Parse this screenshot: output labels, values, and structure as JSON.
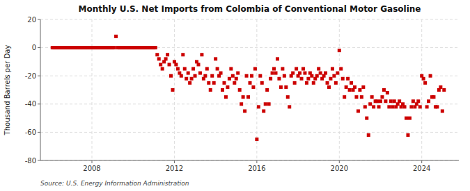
{
  "chart_data": {
    "type": "scatter",
    "title": "Monthly U.S. Net Imports from Colombia of Conventional Motor Gasoline",
    "ylabel": "Thousand Barrels per Day",
    "source": "Source: U.S. Energy Information Administration",
    "color": "#cc0000",
    "marker": "square",
    "grid": true,
    "xlim": [
      2005.5,
      2025.8
    ],
    "xticks": [
      2008,
      2012,
      2016,
      2020,
      2024
    ],
    "ylim": [
      -80,
      20
    ],
    "yticks": [
      -80,
      -60,
      -40,
      -20,
      0,
      20
    ],
    "x": [
      2006.083,
      2006.167,
      2006.25,
      2006.333,
      2006.417,
      2006.5,
      2006.583,
      2006.667,
      2006.75,
      2006.833,
      2006.917,
      2007.0,
      2007.083,
      2007.167,
      2007.25,
      2007.333,
      2007.417,
      2007.5,
      2007.583,
      2007.667,
      2007.75,
      2007.833,
      2007.917,
      2008.0,
      2008.083,
      2008.167,
      2008.25,
      2008.333,
      2008.417,
      2008.5,
      2008.583,
      2008.667,
      2008.75,
      2008.833,
      2008.917,
      2009.0,
      2009.083,
      2009.167,
      2009.25,
      2009.333,
      2009.417,
      2009.5,
      2009.583,
      2009.667,
      2009.75,
      2009.833,
      2009.917,
      2010.0,
      2010.083,
      2010.167,
      2010.25,
      2010.333,
      2010.417,
      2010.5,
      2010.583,
      2010.667,
      2010.75,
      2010.833,
      2010.917,
      2011.0,
      2011.083,
      2011.167,
      2011.25,
      2011.333,
      2011.417,
      2011.5,
      2011.583,
      2011.667,
      2011.75,
      2011.833,
      2011.917,
      2012.0,
      2012.083,
      2012.167,
      2012.25,
      2012.333,
      2012.417,
      2012.5,
      2012.583,
      2012.667,
      2012.75,
      2012.833,
      2012.917,
      2013.0,
      2013.083,
      2013.167,
      2013.25,
      2013.333,
      2013.417,
      2013.5,
      2013.583,
      2013.667,
      2013.75,
      2013.833,
      2013.917,
      2014.0,
      2014.083,
      2014.167,
      2014.25,
      2014.333,
      2014.417,
      2014.5,
      2014.583,
      2014.667,
      2014.75,
      2014.833,
      2014.917,
      2015.0,
      2015.083,
      2015.167,
      2015.25,
      2015.333,
      2015.417,
      2015.5,
      2015.583,
      2015.667,
      2015.75,
      2015.833,
      2015.917,
      2016.0,
      2016.083,
      2016.167,
      2016.25,
      2016.333,
      2016.417,
      2016.5,
      2016.583,
      2016.667,
      2016.75,
      2016.833,
      2016.917,
      2017.0,
      2017.083,
      2017.167,
      2017.25,
      2017.333,
      2017.417,
      2017.5,
      2017.583,
      2017.667,
      2017.75,
      2017.833,
      2017.917,
      2018.0,
      2018.083,
      2018.167,
      2018.25,
      2018.333,
      2018.417,
      2018.5,
      2018.583,
      2018.667,
      2018.75,
      2018.833,
      2018.917,
      2019.0,
      2019.083,
      2019.167,
      2019.25,
      2019.333,
      2019.417,
      2019.5,
      2019.583,
      2019.667,
      2019.75,
      2019.833,
      2019.917,
      2020.0,
      2020.083,
      2020.167,
      2020.25,
      2020.333,
      2020.417,
      2020.5,
      2020.583,
      2020.667,
      2020.75,
      2020.833,
      2020.917,
      2021.0,
      2021.083,
      2021.167,
      2021.25,
      2021.333,
      2021.417,
      2021.5,
      2021.583,
      2021.667,
      2021.75,
      2021.833,
      2021.917,
      2022.0,
      2022.083,
      2022.167,
      2022.25,
      2022.333,
      2022.417,
      2022.5,
      2022.583,
      2022.667,
      2022.75,
      2022.833,
      2022.917,
      2023.0,
      2023.083,
      2023.167,
      2023.25,
      2023.333,
      2023.417,
      2023.5,
      2023.583,
      2023.667,
      2023.75,
      2023.833,
      2023.917,
      2024.0,
      2024.083,
      2024.167,
      2024.25,
      2024.333,
      2024.417,
      2024.5,
      2024.583,
      2024.667,
      2024.75,
      2024.833,
      2024.917,
      2025.0,
      2025.083
    ],
    "values": [
      0,
      0,
      0,
      0,
      0,
      0,
      0,
      0,
      0,
      0,
      0,
      0,
      0,
      0,
      0,
      0,
      0,
      0,
      0,
      0,
      0,
      0,
      0,
      0,
      0,
      0,
      0,
      0,
      0,
      0,
      0,
      0,
      0,
      0,
      0,
      0,
      0,
      8,
      0,
      0,
      0,
      0,
      0,
      0,
      0,
      0,
      0,
      0,
      0,
      0,
      0,
      0,
      0,
      0,
      0,
      0,
      0,
      0,
      0,
      0,
      0,
      -5,
      -8,
      -12,
      -15,
      -10,
      -8,
      -5,
      -12,
      -20,
      -30,
      -10,
      -12,
      -15,
      -18,
      -20,
      -5,
      -15,
      -22,
      -18,
      -25,
      -22,
      -15,
      -20,
      -10,
      -12,
      -18,
      -5,
      -22,
      -20,
      -15,
      -25,
      -30,
      -20,
      -25,
      -8,
      -15,
      -20,
      -18,
      -30,
      -25,
      -35,
      -28,
      -22,
      -15,
      -20,
      -25,
      -22,
      -18,
      -30,
      -40,
      -35,
      -45,
      -20,
      -35,
      -25,
      -20,
      -28,
      -15,
      -65,
      -42,
      -20,
      -25,
      -45,
      -40,
      -30,
      -40,
      -22,
      -18,
      -15,
      -18,
      -8,
      -22,
      -28,
      -15,
      -20,
      -28,
      -35,
      -42,
      -20,
      -18,
      -25,
      -15,
      -20,
      -18,
      -22,
      -15,
      -18,
      -25,
      -22,
      -18,
      -20,
      -25,
      -22,
      -20,
      -15,
      -18,
      -22,
      -20,
      -18,
      -25,
      -28,
      -22,
      -15,
      -20,
      -25,
      -18,
      -2,
      -15,
      -22,
      -35,
      -28,
      -22,
      -30,
      -25,
      -30,
      -28,
      -35,
      -45,
      -30,
      -35,
      -28,
      -42,
      -50,
      -62,
      -40,
      -35,
      -42,
      -38,
      -38,
      -42,
      -38,
      -35,
      -30,
      -38,
      -32,
      -42,
      -38,
      -42,
      -38,
      -42,
      -40,
      -38,
      -42,
      -40,
      -42,
      -50,
      -62,
      -50,
      -42,
      -38,
      -42,
      -40,
      -38,
      -42,
      -20,
      -22,
      -25,
      -42,
      -38,
      -20,
      -35,
      -35,
      -42,
      -42,
      -30,
      -28,
      -45,
      -30
    ]
  }
}
